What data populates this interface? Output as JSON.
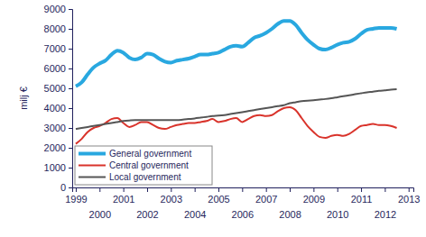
{
  "chart_data": {
    "type": "line",
    "y_label": "milj €",
    "x": [
      1999,
      1999.25,
      1999.5,
      1999.75,
      2000,
      2000.25,
      2000.5,
      2000.75,
      2001,
      2001.25,
      2001.5,
      2001.75,
      2002,
      2002.25,
      2002.5,
      2002.75,
      2003,
      2003.25,
      2003.5,
      2003.75,
      2004,
      2004.25,
      2004.5,
      2004.75,
      2005,
      2005.25,
      2005.5,
      2005.75,
      2006,
      2006.25,
      2006.5,
      2006.75,
      2007,
      2007.25,
      2007.5,
      2007.75,
      2008,
      2008.25,
      2008.5,
      2008.75,
      2009,
      2009.25,
      2009.5,
      2009.75,
      2010,
      2010.25,
      2010.5,
      2010.75,
      2011,
      2011.25,
      2011.5,
      2011.75,
      2012,
      2012.25,
      2012.5
    ],
    "series": [
      {
        "name": "General government",
        "color": "#29a8e0",
        "values": [
          5100,
          5300,
          5700,
          6050,
          6250,
          6400,
          6700,
          6900,
          6800,
          6550,
          6450,
          6550,
          6750,
          6700,
          6500,
          6350,
          6300,
          6400,
          6450,
          6500,
          6600,
          6700,
          6700,
          6750,
          6800,
          6950,
          7100,
          7150,
          7100,
          7300,
          7550,
          7650,
          7800,
          8000,
          8250,
          8400,
          8400,
          8200,
          7800,
          7450,
          7200,
          7000,
          6950,
          7050,
          7200,
          7300,
          7350,
          7500,
          7750,
          7950,
          8000,
          8050,
          8050,
          8050,
          8000
        ]
      },
      {
        "name": "Central government",
        "color": "#d9332b",
        "values": [
          2200,
          2450,
          2800,
          3000,
          3100,
          3250,
          3450,
          3500,
          3250,
          3050,
          3150,
          3300,
          3300,
          3150,
          3000,
          2950,
          3050,
          3150,
          3200,
          3250,
          3250,
          3300,
          3350,
          3450,
          3300,
          3350,
          3450,
          3500,
          3300,
          3450,
          3600,
          3650,
          3600,
          3650,
          3850,
          4000,
          4050,
          3900,
          3500,
          3100,
          2800,
          2550,
          2500,
          2600,
          2650,
          2600,
          2700,
          2900,
          3100,
          3150,
          3200,
          3150,
          3150,
          3100,
          3000
        ]
      },
      {
        "name": "Local government",
        "color": "#555555",
        "values": [
          2950,
          3000,
          3050,
          3100,
          3150,
          3200,
          3250,
          3300,
          3350,
          3380,
          3400,
          3400,
          3400,
          3400,
          3400,
          3400,
          3400,
          3400,
          3420,
          3450,
          3480,
          3520,
          3560,
          3600,
          3620,
          3650,
          3700,
          3750,
          3800,
          3850,
          3900,
          3950,
          4000,
          4050,
          4100,
          4150,
          4250,
          4300,
          4350,
          4380,
          4400,
          4430,
          4460,
          4500,
          4550,
          4600,
          4650,
          4700,
          4750,
          4800,
          4830,
          4870,
          4900,
          4930,
          4950
        ]
      }
    ],
    "xlim": [
      1998.85,
      2013.2
    ],
    "xticks": [
      1999,
      2000,
      2001,
      2002,
      2003,
      2004,
      2005,
      2006,
      2007,
      2008,
      2009,
      2010,
      2011,
      2012,
      2013
    ],
    "ylim": [
      0,
      9000
    ],
    "yticks": [
      0,
      1000,
      2000,
      3000,
      4000,
      5000,
      6000,
      7000,
      8000,
      9000
    ],
    "grid": false,
    "legend": "lower left"
  }
}
